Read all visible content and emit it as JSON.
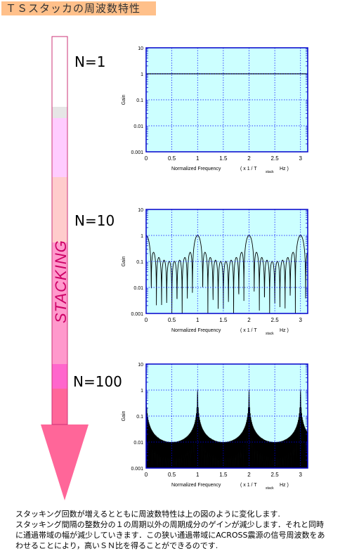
{
  "title": "ＴＳスタッカの周波数特性",
  "arrow_label": "STACKING",
  "colors": {
    "plot_bg": "#ccffff",
    "plot_frame": "#0000cc",
    "grid": "#0000ff",
    "title_bg": "#ffc08a",
    "arrow_bands": [
      "#ffffff",
      "#e6e6e6",
      "#ffccff",
      "#ffcccc",
      "#ff99cc",
      "#ff66cc",
      "#ff6699"
    ]
  },
  "chart_data": [
    {
      "type": "line",
      "label": "N=1",
      "N": 1,
      "xlabel": "Normalized Frequency",
      "xlabel_unit": "( x 1 / T",
      "xlabel_sub": "stack",
      "xlabel_tail": "Hz )",
      "ylabel": "Gain",
      "yscale": "log",
      "xlim": [
        0,
        3.14
      ],
      "ylim": [
        0.001,
        10
      ],
      "xticks": [
        "0",
        "0.5",
        "1",
        "1.5",
        "2",
        "2.5",
        "3"
      ],
      "yticks": [
        "10",
        "1",
        "0.1",
        "0.01",
        "0.001"
      ],
      "grid": true,
      "description_values": {
        "gain_constant": 1
      }
    },
    {
      "type": "line",
      "label": "N=10",
      "N": 10,
      "xlabel": "Normalized Frequency",
      "xlabel_unit": "( x 1 / T",
      "xlabel_sub": "stack",
      "xlabel_tail": "Hz )",
      "ylabel": "Gain",
      "yscale": "log",
      "xlim": [
        0,
        3.14
      ],
      "ylim": [
        0.001,
        10
      ],
      "xticks": [
        "0",
        "0.5",
        "1",
        "1.5",
        "2",
        "2.5",
        "3"
      ],
      "yticks": [
        "10",
        "1",
        "0.1",
        "0.01",
        "0.001"
      ],
      "grid": true,
      "peaks_at": [
        0,
        1,
        2,
        3
      ],
      "peak_gain": 1
    },
    {
      "type": "area",
      "label": "N=100",
      "N": 100,
      "xlabel": "Normalized Frequency",
      "xlabel_unit": "( x 1 / T",
      "xlabel_sub": "stack",
      "xlabel_tail": "Hz )",
      "ylabel": "Gain",
      "yscale": "log",
      "xlim": [
        0,
        3.14
      ],
      "ylim": [
        0.001,
        10
      ],
      "xticks": [
        "0",
        "0.5",
        "1",
        "1.5",
        "2",
        "2.5",
        "3"
      ],
      "yticks": [
        "10",
        "1",
        "0.1",
        "0.01",
        "0.001"
      ],
      "grid": true,
      "peaks_at": [
        0,
        1,
        2,
        3
      ],
      "peak_gain": 1
    }
  ],
  "caption": [
    "スタッキング回数が増えるとともに周波数特性は上の図のように変化します.",
    "スタッキング間隔の整数分の１の周期以外の周期成分のゲインが減少します．それと同時",
    "に通過帯域の幅が減少していきます．この狭い通過帯域にACROSS震源の信号周波数をあ",
    "わせることにより，高いＳＮ比を得ることができるのです."
  ]
}
